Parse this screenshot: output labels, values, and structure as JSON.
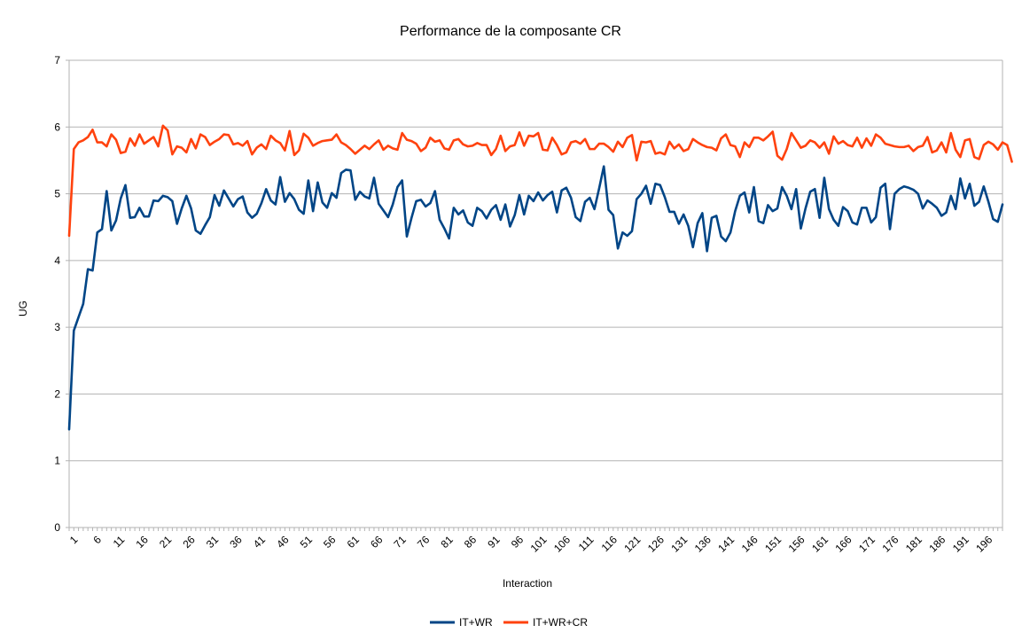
{
  "chart_data": {
    "type": "line",
    "title": "Performance de la composante CR",
    "xlabel": "Interaction",
    "ylabel": "UG",
    "ylim": [
      0,
      7
    ],
    "yticks": [
      0,
      1,
      2,
      3,
      4,
      5,
      6,
      7
    ],
    "xticks": [
      1,
      6,
      11,
      16,
      21,
      26,
      31,
      36,
      41,
      46,
      51,
      56,
      61,
      66,
      71,
      76,
      81,
      86,
      91,
      96,
      101,
      106,
      111,
      116,
      121,
      126,
      131,
      136,
      141,
      146,
      151,
      156,
      161,
      166,
      171,
      176,
      181,
      186,
      191,
      196
    ],
    "xlim": [
      1,
      200
    ],
    "grid": "horizontal",
    "legend_position": "bottom",
    "series": [
      {
        "name": "IT+WR",
        "color": "#004586",
        "values": [
          1.47,
          2.95,
          3.15,
          3.35,
          3.87,
          3.85,
          4.42,
          4.47,
          5.04,
          4.45,
          4.6,
          4.93,
          5.13,
          4.64,
          4.65,
          4.79,
          4.66,
          4.66,
          4.9,
          4.89,
          4.97,
          4.95,
          4.89,
          4.55,
          4.78,
          4.97,
          4.78,
          4.45,
          4.4,
          4.53,
          4.65,
          4.98,
          4.82,
          5.05,
          4.93,
          4.81,
          4.92,
          4.96,
          4.72,
          4.64,
          4.7,
          4.86,
          5.07,
          4.9,
          4.84,
          5.25,
          4.88,
          5.01,
          4.92,
          4.76,
          4.7,
          5.2,
          4.74,
          5.17,
          4.87,
          4.79,
          5.01,
          4.94,
          5.31,
          5.36,
          5.35,
          4.91,
          5.03,
          4.96,
          4.93,
          5.24,
          4.85,
          4.75,
          4.65,
          4.84,
          5.1,
          5.2,
          4.36,
          4.64,
          4.89,
          4.91,
          4.81,
          4.86,
          5.04,
          4.61,
          4.48,
          4.33,
          4.79,
          4.69,
          4.75,
          4.57,
          4.52,
          4.79,
          4.74,
          4.63,
          4.76,
          4.83,
          4.61,
          4.84,
          4.51,
          4.68,
          4.98,
          4.69,
          4.97,
          4.89,
          5.02,
          4.9,
          4.98,
          5.03,
          4.72,
          5.05,
          5.09,
          4.94,
          4.65,
          4.59,
          4.88,
          4.94,
          4.77,
          5.08,
          5.41,
          4.76,
          4.68,
          4.18,
          4.42,
          4.37,
          4.44,
          4.92,
          5.0,
          5.12,
          4.85,
          5.15,
          5.13,
          4.95,
          4.73,
          4.73,
          4.55,
          4.69,
          4.52,
          4.2,
          4.56,
          4.71,
          4.14,
          4.64,
          4.67,
          4.36,
          4.29,
          4.42,
          4.74,
          4.97,
          5.02,
          4.72,
          5.1,
          4.59,
          4.56,
          4.83,
          4.74,
          4.78,
          5.1,
          4.97,
          4.77,
          5.07,
          4.48,
          4.78,
          5.03,
          5.07,
          4.64,
          5.24,
          4.77,
          4.61,
          4.52,
          4.8,
          4.74,
          4.57,
          4.54,
          4.79,
          4.79,
          4.57,
          4.65,
          5.09,
          5.15,
          4.47,
          5.0,
          5.07,
          5.11,
          5.09,
          5.06,
          5.0,
          4.78,
          4.9,
          4.85,
          4.79,
          4.67,
          4.72,
          4.97,
          4.77,
          5.23,
          4.93,
          5.15,
          4.82,
          4.88,
          5.11,
          4.88,
          4.62,
          4.58,
          4.84
        ]
      },
      {
        "name": "IT+WR+CR",
        "color": "#ff420e",
        "values": [
          4.37,
          5.67,
          5.77,
          5.8,
          5.85,
          5.96,
          5.77,
          5.77,
          5.71,
          5.89,
          5.81,
          5.61,
          5.63,
          5.83,
          5.72,
          5.89,
          5.75,
          5.8,
          5.85,
          5.71,
          6.02,
          5.95,
          5.59,
          5.71,
          5.69,
          5.62,
          5.82,
          5.68,
          5.89,
          5.85,
          5.73,
          5.78,
          5.82,
          5.89,
          5.88,
          5.74,
          5.76,
          5.72,
          5.79,
          5.59,
          5.69,
          5.74,
          5.67,
          5.87,
          5.8,
          5.76,
          5.65,
          5.94,
          5.58,
          5.65,
          5.9,
          5.84,
          5.72,
          5.76,
          5.79,
          5.8,
          5.81,
          5.89,
          5.77,
          5.73,
          5.67,
          5.6,
          5.66,
          5.72,
          5.67,
          5.74,
          5.8,
          5.66,
          5.72,
          5.68,
          5.66,
          5.91,
          5.81,
          5.79,
          5.75,
          5.64,
          5.69,
          5.84,
          5.78,
          5.8,
          5.68,
          5.66,
          5.8,
          5.82,
          5.74,
          5.71,
          5.72,
          5.76,
          5.73,
          5.73,
          5.58,
          5.67,
          5.87,
          5.64,
          5.71,
          5.73,
          5.92,
          5.72,
          5.87,
          5.86,
          5.91,
          5.66,
          5.65,
          5.84,
          5.73,
          5.59,
          5.62,
          5.77,
          5.79,
          5.75,
          5.82,
          5.67,
          5.67,
          5.75,
          5.75,
          5.7,
          5.63,
          5.78,
          5.7,
          5.84,
          5.88,
          5.5,
          5.78,
          5.77,
          5.79,
          5.6,
          5.62,
          5.59,
          5.78,
          5.68,
          5.74,
          5.64,
          5.67,
          5.82,
          5.77,
          5.73,
          5.7,
          5.69,
          5.65,
          5.83,
          5.89,
          5.73,
          5.71,
          5.55,
          5.77,
          5.7,
          5.84,
          5.84,
          5.8,
          5.86,
          5.93,
          5.57,
          5.51,
          5.67,
          5.91,
          5.8,
          5.69,
          5.72,
          5.8,
          5.77,
          5.69,
          5.77,
          5.6,
          5.86,
          5.75,
          5.79,
          5.73,
          5.71,
          5.84,
          5.69,
          5.83,
          5.72,
          5.89,
          5.84,
          5.75,
          5.73,
          5.71,
          5.7,
          5.7,
          5.72,
          5.64,
          5.7,
          5.72,
          5.85,
          5.62,
          5.65,
          5.77,
          5.62,
          5.91,
          5.66,
          5.55,
          5.8,
          5.82,
          5.55,
          5.52,
          5.73,
          5.78,
          5.74,
          5.66,
          5.77,
          5.73,
          5.48
        ]
      }
    ]
  }
}
